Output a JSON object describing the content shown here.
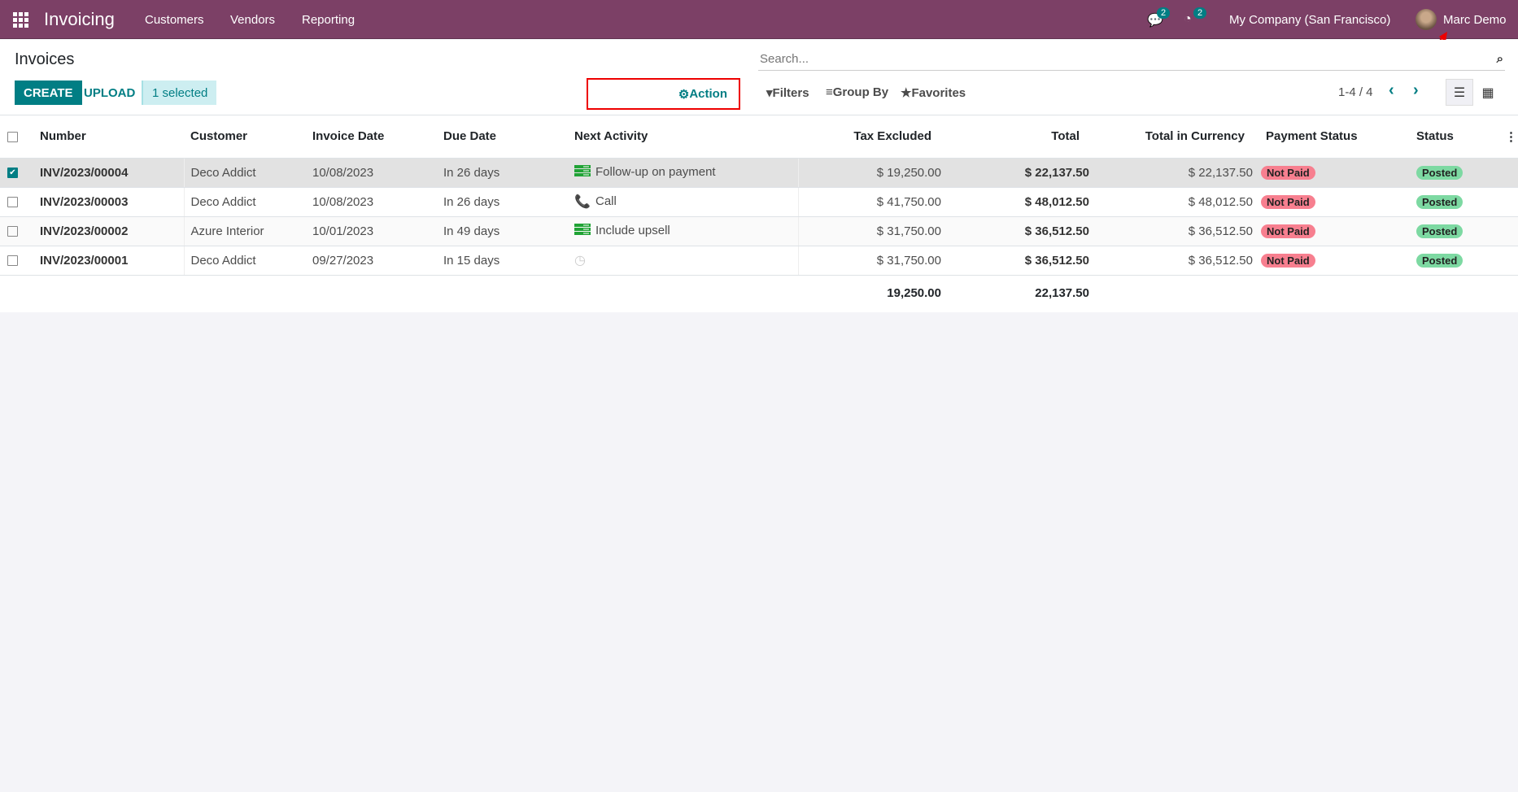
{
  "nav": {
    "app": "Invoicing",
    "menu": [
      "Customers",
      "Vendors",
      "Reporting"
    ],
    "messages_count": "2",
    "activities_count": "2",
    "company": "My Company (San Francisco)",
    "user": "Marc Demo"
  },
  "control": {
    "title": "Invoices",
    "create": "CREATE",
    "upload": "UPLOAD",
    "selected": "1 selected",
    "action": "Action",
    "search_placeholder": "Search...",
    "filters": "Filters",
    "group_by": "Group By",
    "favorites": "Favorites",
    "pager": "1-4 / 4"
  },
  "columns": [
    "Number",
    "Customer",
    "Invoice Date",
    "Due Date",
    "Next Activity",
    "Tax Excluded",
    "Total",
    "Total in Currency",
    "Payment Status",
    "Status"
  ],
  "rows": [
    {
      "checked": true,
      "number": "INV/2023/00004",
      "customer": "Deco Addict",
      "invoice_date": "10/08/2023",
      "due": "In 26 days",
      "activity_icon": "todo-icon",
      "activity": "Follow-up on payment",
      "tax_excl": "$ 19,250.00",
      "total": "$ 22,137.50",
      "total_cur": "$ 22,137.50",
      "payment": "Not Paid",
      "status": "Posted"
    },
    {
      "checked": false,
      "number": "INV/2023/00003",
      "customer": "Deco Addict",
      "invoice_date": "10/08/2023",
      "due": "In 26 days",
      "activity_icon": "phone-icon",
      "activity": "Call",
      "tax_excl": "$ 41,750.00",
      "total": "$ 48,012.50",
      "total_cur": "$ 48,012.50",
      "payment": "Not Paid",
      "status": "Posted"
    },
    {
      "checked": false,
      "number": "INV/2023/00002",
      "customer": "Azure Interior",
      "invoice_date": "10/01/2023",
      "due": "In 49 days",
      "activity_icon": "todo-icon",
      "activity": "Include upsell",
      "tax_excl": "$ 31,750.00",
      "total": "$ 36,512.50",
      "total_cur": "$ 36,512.50",
      "payment": "Not Paid",
      "status": "Posted"
    },
    {
      "checked": false,
      "number": "INV/2023/00001",
      "customer": "Deco Addict",
      "invoice_date": "09/27/2023",
      "due": "In 15 days",
      "activity_icon": "clock-icon",
      "activity": "",
      "tax_excl": "$ 31,750.00",
      "total": "$ 36,512.50",
      "total_cur": "$ 36,512.50",
      "payment": "Not Paid",
      "status": "Posted"
    }
  ],
  "totals": {
    "tax_excl": "19,250.00",
    "total": "22,137.50"
  },
  "colors": {
    "navbar": "#7c4066",
    "primary": "#017e84",
    "not_paid": "#f77f8f",
    "posted": "#7dd9a2"
  }
}
